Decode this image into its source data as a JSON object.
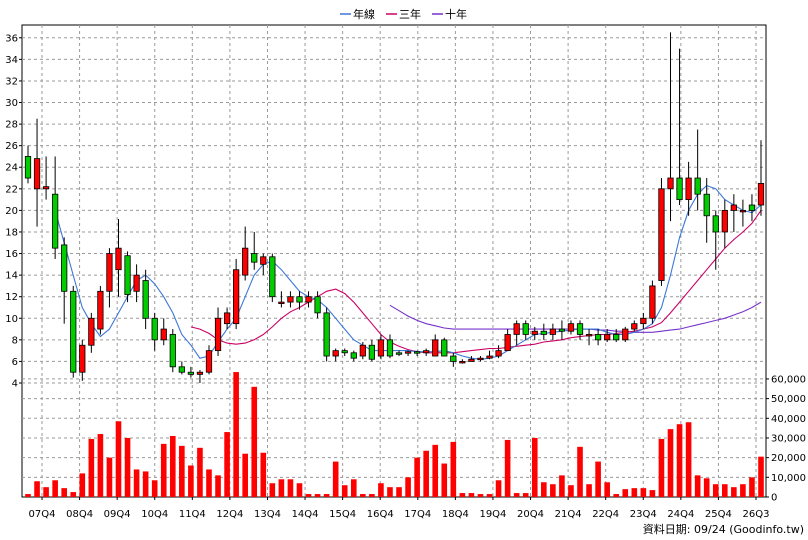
{
  "chart_data": {
    "type": "candlestick+bar",
    "legend": [
      {
        "name": "年線",
        "color": "#3C78D8"
      },
      {
        "name": "三年",
        "color": "#CC0066"
      },
      {
        "name": "十年",
        "color": "#7733CC"
      }
    ],
    "legend_position": "top-center",
    "grid": true,
    "x_tick_labels": [
      "07Q4",
      "08Q4",
      "09Q4",
      "10Q4",
      "11Q4",
      "12Q4",
      "13Q4",
      "14Q4",
      "15Q4",
      "16Q4",
      "17Q4",
      "18Q4",
      "19Q4",
      "20Q4",
      "21Q4",
      "22Q4",
      "23Q4",
      "24Q4",
      "25Q4",
      "26Q3"
    ],
    "price_axis": {
      "ylim": [
        4,
        37
      ],
      "ticks": [
        4,
        6,
        8,
        10,
        12,
        14,
        16,
        18,
        20,
        22,
        24,
        26,
        28,
        30,
        32,
        34,
        36
      ]
    },
    "volume_axis": {
      "ylim": [
        0,
        62000
      ],
      "ticks": [
        "0",
        "10,000",
        "20,000",
        "30,000",
        "40,000",
        "50,000",
        "60,000"
      ]
    },
    "source_note": "資料日期: 09/24  (Goodinfo.tw)",
    "candles": [
      [
        25.0,
        23.0,
        26.0,
        22.5
      ],
      [
        22.0,
        24.8,
        28.5,
        18.5
      ],
      [
        22.0,
        22.2,
        25.0,
        21.0
      ],
      [
        21.5,
        16.5,
        25.0,
        15.5
      ],
      [
        16.8,
        12.5,
        17.5,
        9.5
      ],
      [
        12.5,
        5.0,
        13.0,
        4.5
      ],
      [
        5.0,
        7.5,
        8.0,
        4.2
      ],
      [
        7.5,
        10.0,
        10.5,
        6.8
      ],
      [
        9.0,
        12.5,
        13.0,
        8.5
      ],
      [
        12.5,
        16.0,
        16.5,
        11.0
      ],
      [
        14.5,
        16.5,
        19.2,
        12.0
      ],
      [
        15.8,
        12.2,
        16.2,
        11.5
      ],
      [
        12.5,
        14.0,
        15.0,
        11.5
      ],
      [
        13.5,
        10.0,
        14.5,
        9.0
      ],
      [
        10.0,
        8.0,
        10.5,
        7.0
      ],
      [
        8.0,
        9.0,
        10.0,
        7.5
      ],
      [
        8.5,
        5.5,
        9.0,
        5.0
      ],
      [
        5.5,
        5.0,
        6.0,
        4.8
      ],
      [
        5.0,
        4.8,
        5.5,
        4.5
      ],
      [
        4.8,
        5.0,
        5.2,
        4.0
      ],
      [
        5.0,
        7.0,
        7.5,
        4.8
      ],
      [
        7.0,
        10.0,
        11.0,
        6.5
      ],
      [
        9.5,
        10.5,
        11.0,
        9.0
      ],
      [
        9.5,
        14.5,
        15.5,
        9.0
      ],
      [
        14.0,
        16.5,
        18.5,
        13.5
      ],
      [
        16.0,
        15.2,
        18.0,
        14.5
      ],
      [
        15.0,
        15.7,
        16.0,
        14.0
      ],
      [
        15.7,
        12.0,
        16.0,
        11.5
      ],
      [
        11.5,
        11.5,
        12.5,
        11.0
      ],
      [
        11.5,
        12.0,
        12.5,
        11.0
      ],
      [
        12.0,
        11.5,
        12.5,
        10.8
      ],
      [
        11.5,
        12.0,
        12.5,
        11.0
      ],
      [
        12.0,
        10.5,
        12.5,
        10.0
      ],
      [
        10.5,
        6.5,
        11.0,
        6.0
      ],
      [
        6.5,
        7.0,
        7.2,
        6.0
      ],
      [
        7.0,
        6.8,
        7.2,
        6.5
      ],
      [
        6.8,
        6.3,
        7.0,
        6.0
      ],
      [
        6.5,
        7.5,
        7.8,
        6.2
      ],
      [
        7.5,
        6.2,
        8.0,
        6.0
      ],
      [
        6.5,
        8.0,
        8.5,
        6.2
      ],
      [
        8.0,
        6.5,
        8.5,
        6.3
      ],
      [
        6.8,
        6.7,
        7.0,
        6.5
      ],
      [
        6.8,
        6.9,
        7.0,
        6.5
      ],
      [
        6.9,
        6.8,
        7.0,
        6.5
      ],
      [
        6.8,
        7.0,
        7.2,
        6.5
      ],
      [
        6.5,
        8.0,
        8.5,
        6.5
      ],
      [
        8.0,
        6.5,
        8.2,
        6.5
      ],
      [
        6.5,
        6.0,
        6.8,
        5.5
      ],
      [
        6.0,
        6.0,
        6.2,
        5.8
      ],
      [
        6.0,
        6.2,
        6.5,
        6.0
      ],
      [
        6.2,
        6.3,
        6.5,
        6.0
      ],
      [
        6.3,
        6.5,
        7.0,
        6.2
      ],
      [
        6.5,
        7.0,
        7.5,
        6.3
      ],
      [
        7.0,
        8.5,
        9.0,
        7.0
      ],
      [
        8.5,
        9.5,
        9.8,
        7.5
      ],
      [
        9.5,
        8.5,
        9.8,
        8.0
      ],
      [
        8.5,
        8.8,
        9.2,
        8.0
      ],
      [
        8.8,
        8.5,
        9.5,
        8.0
      ],
      [
        8.5,
        9.0,
        9.5,
        8.0
      ],
      [
        9.0,
        8.8,
        9.8,
        8.0
      ],
      [
        8.8,
        9.5,
        9.8,
        8.5
      ],
      [
        9.5,
        8.5,
        9.8,
        8.0
      ],
      [
        8.5,
        8.5,
        9.0,
        7.5
      ],
      [
        8.5,
        8.0,
        9.0,
        7.5
      ],
      [
        8.0,
        8.5,
        9.0,
        7.8
      ],
      [
        8.5,
        8.0,
        9.0,
        7.8
      ],
      [
        8.0,
        9.0,
        9.2,
        7.8
      ],
      [
        9.0,
        9.5,
        9.8,
        8.8
      ],
      [
        9.5,
        10.0,
        10.5,
        9.0
      ],
      [
        10.0,
        13.0,
        13.5,
        9.5
      ],
      [
        13.5,
        22.0,
        23.0,
        13.0
      ],
      [
        22.0,
        23.0,
        36.5,
        19.0
      ],
      [
        23.0,
        21.0,
        35.0,
        20.5
      ],
      [
        21.0,
        23.0,
        24.5,
        19.5
      ],
      [
        23.0,
        21.5,
        27.5,
        20.0
      ],
      [
        21.5,
        19.5,
        23.0,
        17.0
      ],
      [
        19.5,
        18.0,
        20.0,
        14.5
      ],
      [
        18.0,
        20.0,
        21.0,
        16.5
      ],
      [
        20.0,
        20.5,
        21.5,
        18.0
      ],
      [
        20.0,
        20.0,
        21.0,
        18.5
      ],
      [
        20.5,
        20.0,
        21.5,
        19.0
      ],
      [
        20.5,
        22.5,
        26.5,
        19.5
      ]
    ],
    "volume": [
      1500,
      8000,
      5000,
      8500,
      4500,
      2500,
      12000,
      29500,
      32000,
      20000,
      38500,
      30000,
      14000,
      13000,
      8500,
      27000,
      31000,
      26000,
      16000,
      25000,
      14000,
      11000,
      33000,
      63500,
      22000,
      56000,
      22500,
      7000,
      9000,
      9000,
      7000,
      1500,
      1500,
      1500,
      18000,
      6000,
      9000,
      1500,
      1500,
      7000,
      5000,
      5000,
      10000,
      20000,
      23500,
      26500,
      17000,
      28000,
      2000,
      2000,
      1500,
      1500,
      8500,
      29000,
      2000,
      2000,
      30000,
      7500,
      6500,
      11000,
      6000,
      25500,
      6500,
      18000,
      7500,
      1500,
      4000,
      4500,
      4500,
      3500,
      29500,
      34500,
      37000,
      38000,
      11000,
      9500,
      6500,
      6500,
      5000,
      6500,
      10000,
      20500
    ],
    "annual_ma": [
      null,
      null,
      null,
      20.0,
      17.0,
      14.0,
      11.0,
      9.5,
      8.3,
      9.0,
      10.5,
      12.0,
      13.5,
      14.0,
      13.2,
      12.0,
      10.5,
      8.5,
      7.5,
      6.3,
      6.5,
      7.8,
      9.0,
      10.0,
      12.0,
      14.0,
      15.0,
      15.3,
      14.5,
      13.5,
      12.5,
      12.0,
      11.7,
      11.0,
      10.0,
      9.0,
      8.0,
      7.5,
      7.0,
      7.0,
      7.0,
      7.0,
      7.0,
      6.9,
      6.9,
      6.9,
      7.0,
      6.8,
      6.5,
      6.3,
      6.2,
      6.3,
      6.5,
      7.0,
      7.5,
      8.0,
      8.5,
      8.6,
      8.7,
      8.8,
      8.9,
      9.0,
      9.0,
      9.0,
      8.7,
      8.5,
      8.5,
      8.7,
      9.0,
      9.5,
      11.0,
      14.0,
      17.5,
      20.0,
      21.5,
      22.3,
      22.0,
      21.0,
      20.5,
      20.0,
      19.8,
      20.5
    ],
    "three_year_ma": [
      null,
      null,
      null,
      null,
      null,
      null,
      null,
      null,
      null,
      null,
      null,
      null,
      null,
      null,
      null,
      null,
      null,
      null,
      9.2,
      9.0,
      8.6,
      8.0,
      7.7,
      7.6,
      7.7,
      8.0,
      8.5,
      9.2,
      10.0,
      10.6,
      11.0,
      11.5,
      12.0,
      12.5,
      12.7,
      12.3,
      11.5,
      10.5,
      9.5,
      8.5,
      7.8,
      7.4,
      7.1,
      6.9,
      6.8,
      6.8,
      6.8,
      6.8,
      6.9,
      7.0,
      7.1,
      7.2,
      7.2,
      7.3,
      7.4,
      7.5,
      7.6,
      7.8,
      7.9,
      8.0,
      8.2,
      8.3,
      8.4,
      8.5,
      8.5,
      8.6,
      8.7,
      8.8,
      9.0,
      9.2,
      9.6,
      10.5,
      11.5,
      12.5,
      13.5,
      14.5,
      15.5,
      16.5,
      17.3,
      18.0,
      18.8,
      20.0
    ],
    "ten_year_ma": [
      null,
      null,
      null,
      null,
      null,
      null,
      null,
      null,
      null,
      null,
      null,
      null,
      null,
      null,
      null,
      null,
      null,
      null,
      null,
      null,
      null,
      null,
      null,
      null,
      null,
      null,
      null,
      null,
      null,
      null,
      null,
      null,
      null,
      null,
      null,
      null,
      null,
      null,
      null,
      null,
      11.2,
      10.7,
      10.2,
      9.8,
      9.5,
      9.3,
      9.1,
      9.0,
      9.0,
      9.0,
      9.0,
      9.0,
      9.0,
      9.0,
      9.0,
      9.0,
      9.0,
      9.0,
      9.0,
      9.0,
      9.0,
      9.0,
      9.0,
      8.9,
      8.9,
      8.8,
      8.8,
      8.7,
      8.7,
      8.7,
      8.8,
      8.9,
      9.0,
      9.2,
      9.4,
      9.6,
      9.8,
      10.0,
      10.3,
      10.6,
      11.0,
      11.5
    ]
  }
}
